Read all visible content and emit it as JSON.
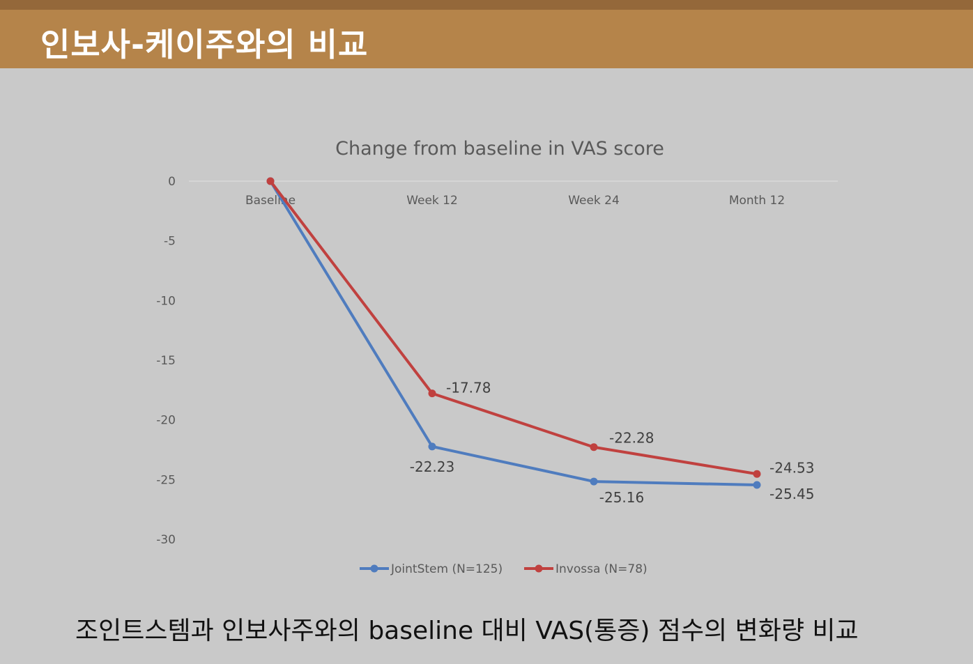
{
  "header": {
    "title": "인보사-케이주와의 비교"
  },
  "caption": "조인트스템과 인보사주와의 baseline 대비 VAS(통증) 점수의 변화량 비교",
  "chart_data": {
    "type": "line",
    "title": "Change from baseline in VAS score",
    "xlabel": "",
    "ylabel": "",
    "categories": [
      "Baseline",
      "Week 12",
      "Week 24",
      "Month 12"
    ],
    "ylim": [
      -30,
      0
    ],
    "yticks": [
      "0",
      "-5",
      "-10",
      "-15",
      "-20",
      "-25",
      "-30"
    ],
    "grid": false,
    "legend_position": "bottom",
    "series": [
      {
        "name": "JointStem (N=125)",
        "color": "#4f7cbe",
        "values": [
          0,
          -22.23,
          -25.16,
          -25.45
        ],
        "labels": [
          "",
          "-22.23",
          "-25.16",
          "-25.45"
        ]
      },
      {
        "name": "Invossa (N=78)",
        "color": "#c0413f",
        "values": [
          0,
          -17.78,
          -22.28,
          -24.53
        ],
        "labels": [
          "",
          "-17.78",
          "-22.28",
          "-24.53"
        ]
      }
    ]
  }
}
